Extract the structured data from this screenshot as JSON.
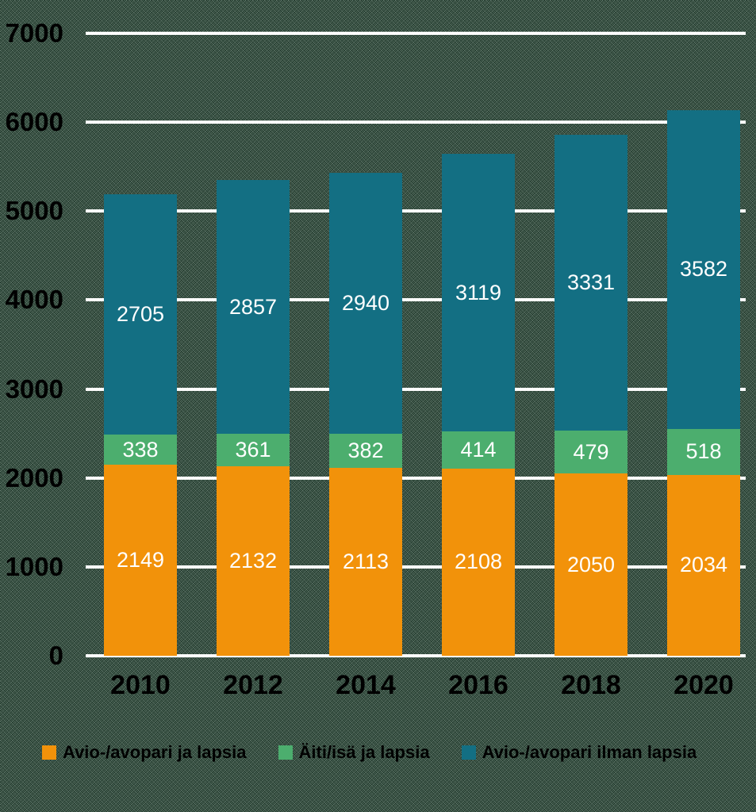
{
  "chart_data": {
    "type": "bar",
    "stacked": true,
    "categories": [
      "2010",
      "2012",
      "2014",
      "2016",
      "2018",
      "2020"
    ],
    "series": [
      {
        "name": "Avio-/avopari ja lapsia",
        "color": "#f2920a",
        "values": [
          2149,
          2132,
          2113,
          2108,
          2050,
          2034
        ]
      },
      {
        "name": "Äiti/isä ja lapsia",
        "color": "#4cae6e",
        "values": [
          338,
          361,
          382,
          414,
          479,
          518
        ]
      },
      {
        "name": "Avio-/avopari ilman lapsia",
        "color": "#136f83",
        "values": [
          2705,
          2857,
          2940,
          3119,
          3331,
          3582
        ]
      }
    ],
    "title": "",
    "xlabel": "",
    "ylabel": "",
    "ylim": [
      0,
      7000
    ],
    "ytick_step": 1000,
    "yticks": [
      "0",
      "1000",
      "2000",
      "3000",
      "4000",
      "5000",
      "6000",
      "7000"
    ],
    "grid": true,
    "gridline_color": "#ffffff",
    "axis_text_color": "#000000",
    "value_labels": "inside-center",
    "value_label_color": "#ffffff",
    "legend_position": "bottom"
  }
}
